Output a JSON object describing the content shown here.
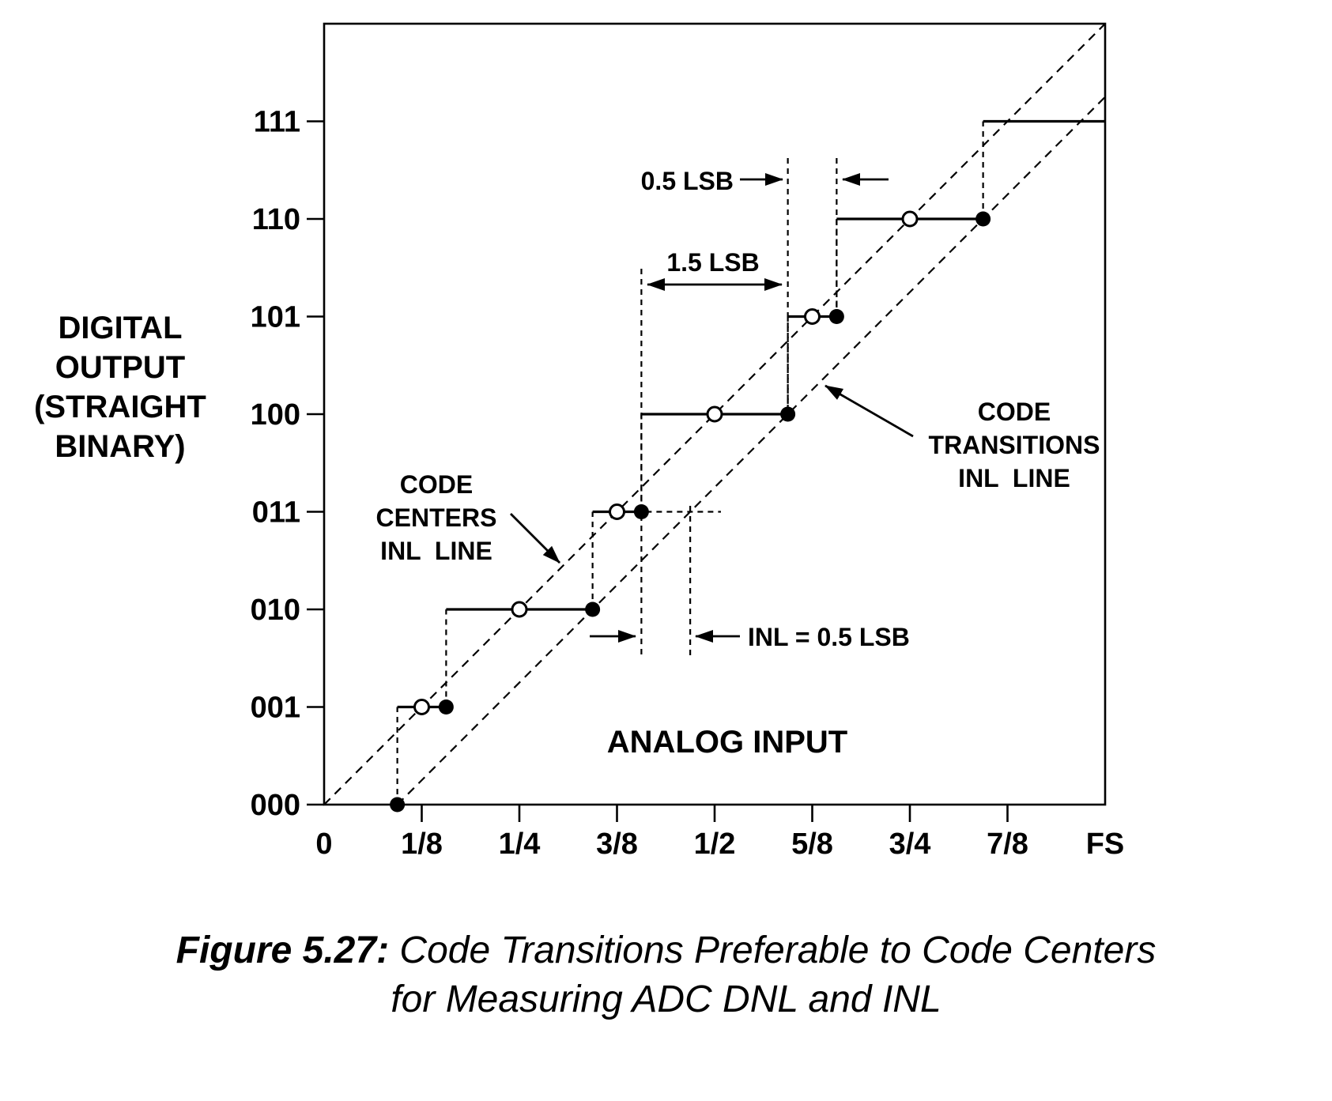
{
  "figure": {
    "caption_prefix": "Figure 5.27:",
    "caption_rest": "Code Transitions Preferable to Code Centers",
    "caption_line2": "for Measuring ADC DNL and INL"
  },
  "axes": {
    "y_title_lines": [
      "DIGITAL",
      "OUTPUT",
      "(STRAIGHT",
      "BINARY)"
    ],
    "x_title": "ANALOG INPUT",
    "x_tick_labels": [
      "0",
      "1/8",
      "1/4",
      "3/8",
      "1/2",
      "5/8",
      "3/4",
      "7/8",
      "FS"
    ],
    "y_tick_labels": [
      "000",
      "001",
      "010",
      "011",
      "100",
      "101",
      "110",
      "111"
    ]
  },
  "annotations": {
    "half_lsb": "0.5 LSB",
    "one_and_half_lsb": "1.5 LSB",
    "inl_half_lsb": "INL = 0.5 LSB",
    "centers_line_label_lines": [
      "CODE",
      "CENTERS",
      "INL  LINE"
    ],
    "transitions_line_label_lines": [
      "CODE",
      "TRANSITIONS",
      "INL  LINE"
    ]
  },
  "chart_data": {
    "type": "line",
    "description": "3-bit ADC transfer function staircase comparing code-center INL line with code-transition INL line",
    "x_axis": {
      "label": "ANALOG INPUT",
      "units": "fraction of full scale",
      "range_lsb": [
        0,
        8
      ],
      "tick_fractions": [
        "0",
        "1/8",
        "1/4",
        "3/8",
        "1/2",
        "5/8",
        "3/4",
        "7/8",
        "FS"
      ]
    },
    "y_axis": {
      "label": "DIGITAL OUTPUT (STRAIGHT BINARY)",
      "codes": [
        "000",
        "001",
        "010",
        "011",
        "100",
        "101",
        "110",
        "111"
      ]
    },
    "code_transitions_lsb": [
      0.75,
      1.25,
      2.75,
      3.25,
      4.75,
      5.25,
      6.75
    ],
    "code_centers_lsb": [
      1,
      2,
      3,
      4,
      5,
      6
    ],
    "centers_inl_line_lsb": {
      "from": [
        0,
        0
      ],
      "to": [
        8,
        8
      ]
    },
    "transitions_inl_line_offset_lsb": 0.75,
    "measurements": {
      "gap_between_transitions_100_101": "1.5 LSB",
      "gap_between_transitions_101_110": "0.5 LSB",
      "inl_at_transition_011_100": "INL = 0.5 LSB"
    },
    "marker_legend": "open circle = code center, filled dot = code transition",
    "grid": false
  }
}
